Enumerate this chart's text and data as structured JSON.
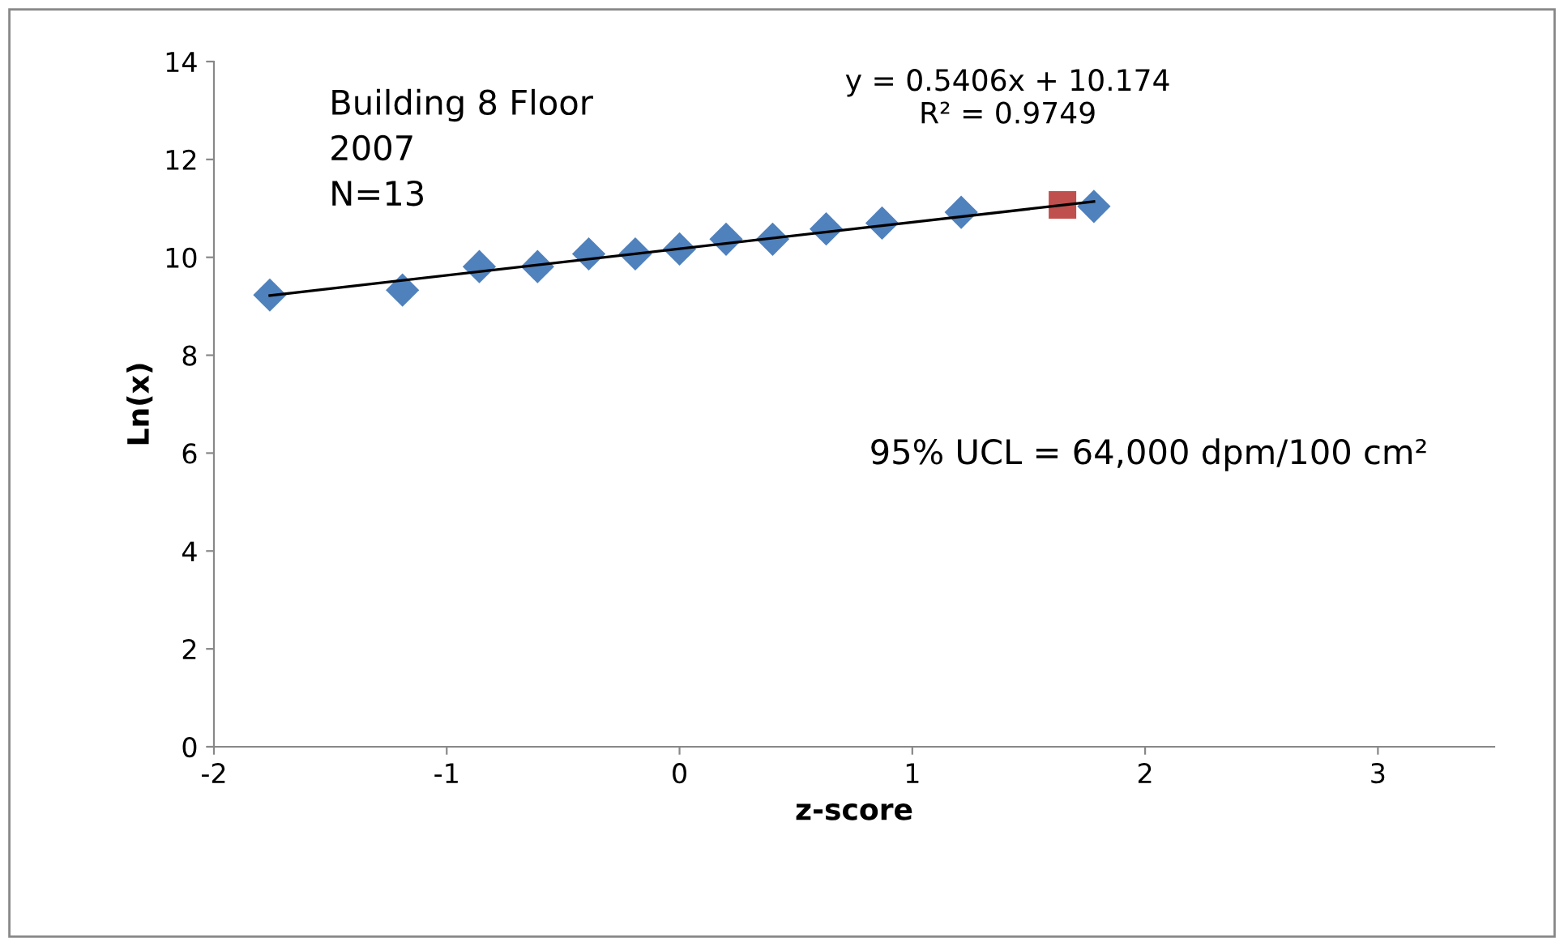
{
  "chart_data": {
    "type": "scatter",
    "xlabel": "z-score",
    "ylabel": "Ln(x)",
    "xlim": [
      -2,
      3.5
    ],
    "xticks": [
      -2,
      -1,
      0,
      1,
      2,
      3
    ],
    "ylim": [
      0,
      14
    ],
    "yticks": [
      0,
      2,
      4,
      6,
      8,
      10,
      12,
      14
    ],
    "grid": false,
    "legend": false,
    "series": [
      {
        "marker": "diamond",
        "color": "#4f81bd",
        "x": [
          -1.76,
          -1.19,
          -0.86,
          -0.61,
          -0.39,
          -0.19,
          0.0,
          0.2,
          0.4,
          0.63,
          0.87,
          1.21,
          1.78
        ],
        "values": [
          9.23,
          9.33,
          9.81,
          9.81,
          10.07,
          10.07,
          10.17,
          10.37,
          10.37,
          10.58,
          10.7,
          10.92,
          11.04
        ]
      },
      {
        "marker": "square",
        "color": "#c0504d",
        "x": [
          1.645
        ],
        "values": [
          11.07
        ]
      },
      {
        "type": "line",
        "marker": "none",
        "color": "#000000",
        "x": [
          -1.76,
          1.78
        ],
        "values": [
          9.22,
          11.14
        ]
      }
    ],
    "annotations": [
      "Building 8 Floor\n2007\nN=13",
      "y = 0.5406x + 10.174\nR² = 0.9749",
      "95% UCL = 64,000 dpm/100 cm²"
    ]
  }
}
